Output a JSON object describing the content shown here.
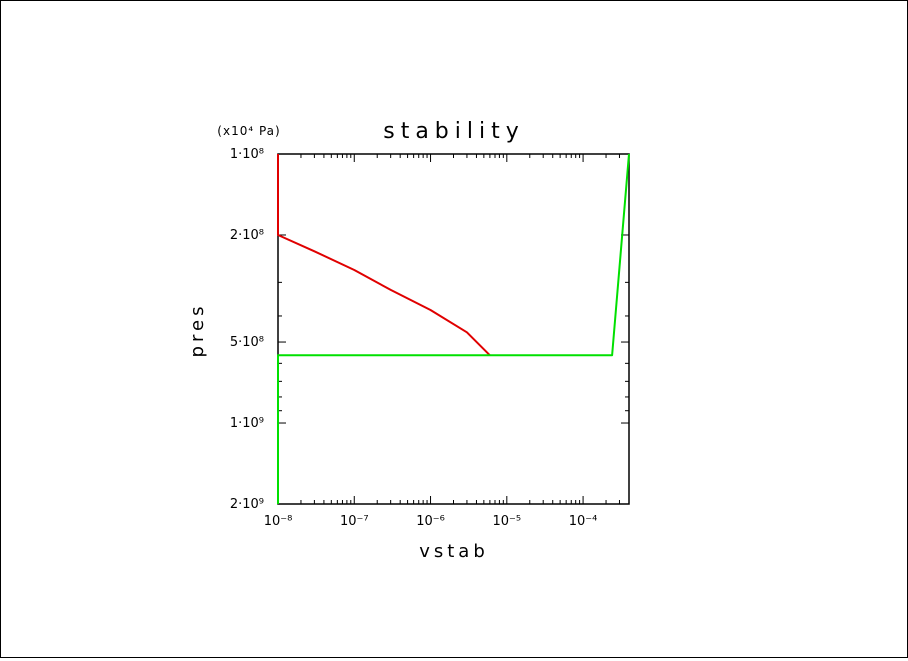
{
  "chart_data": {
    "type": "line",
    "title": "stability",
    "xlabel": "vstab",
    "ylabel": "pres",
    "y_unit": "(x10⁴ Pa)",
    "x_scale": "log",
    "y_scale": "log",
    "y_inverted": true,
    "xlim": [
      1e-08,
      0.0004
    ],
    "ylim": [
      100000000,
      2000000000
    ],
    "x_ticks": [
      {
        "value": 1e-08,
        "label": "10⁻⁸"
      },
      {
        "value": 1e-07,
        "label": "10⁻⁷"
      },
      {
        "value": 1e-06,
        "label": "10⁻⁶"
      },
      {
        "value": 1e-05,
        "label": "10⁻⁵"
      },
      {
        "value": 0.0001,
        "label": "10⁻⁴"
      }
    ],
    "y_ticks": [
      {
        "value": 100000000,
        "label": "1·10⁸"
      },
      {
        "value": 200000000,
        "label": "2·10⁸"
      },
      {
        "value": 500000000,
        "label": "5·10⁸"
      },
      {
        "value": 1000000000,
        "label": "1·10⁹"
      },
      {
        "value": 2000000000,
        "label": "2·10⁹"
      }
    ],
    "grid": false,
    "series": [
      {
        "color": "#e00000",
        "points": [
          [
            1e-08,
            100000000
          ],
          [
            1e-08,
            200000000
          ],
          [
            3e-08,
            230000000
          ],
          [
            1e-07,
            270000000
          ],
          [
            3e-07,
            320000000
          ],
          [
            1e-06,
            380000000
          ],
          [
            3e-06,
            460000000
          ],
          [
            6e-06,
            560000000
          ]
        ]
      },
      {
        "color": "#00e000",
        "points": [
          [
            1e-08,
            2000000000
          ],
          [
            1e-08,
            560000000
          ],
          [
            0.00024,
            560000000
          ],
          [
            0.0004,
            100000000
          ]
        ]
      }
    ]
  }
}
